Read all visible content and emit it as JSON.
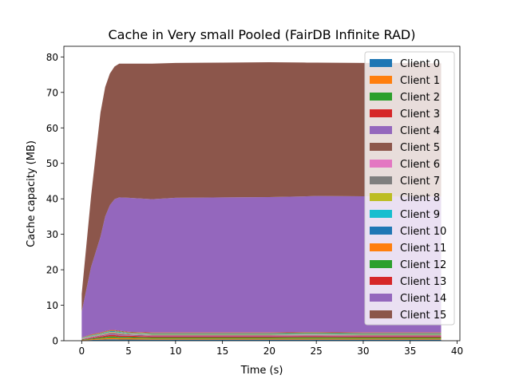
{
  "chart_data": {
    "type": "area",
    "stacked": true,
    "title": "Cache in Very small Pooled (FairDB Infinite RAD)",
    "xlabel": "Time (s)",
    "ylabel": "Cache capacity (MB)",
    "xlim": [
      -1.9,
      40.3
    ],
    "ylim": [
      0,
      83
    ],
    "xticks": [
      0,
      5,
      10,
      15,
      20,
      25,
      30,
      35,
      40
    ],
    "yticks": [
      0,
      10,
      20,
      30,
      40,
      50,
      60,
      70,
      80
    ],
    "legend_position": "top-right",
    "grid": false,
    "x": [
      0,
      1,
      2,
      2.5,
      3,
      3.5,
      4,
      5,
      7.5,
      10,
      15,
      20,
      24,
      25,
      30,
      35,
      38.3
    ],
    "series": [
      {
        "name": "Client 0",
        "color": "#1f77b4",
        "values": [
          0.1,
          0.2,
          0.3,
          0.35,
          0.4,
          0.4,
          0.35,
          0.35,
          0.3,
          0.3,
          0.3,
          0.3,
          0.3,
          0.3,
          0.3,
          0.3,
          0.3
        ]
      },
      {
        "name": "Client 1",
        "color": "#ff7f0e",
        "values": [
          0.1,
          0.2,
          0.3,
          0.35,
          0.4,
          0.4,
          0.35,
          0.35,
          0.3,
          0.3,
          0.3,
          0.3,
          0.3,
          0.3,
          0.3,
          0.3,
          0.3
        ]
      },
      {
        "name": "Client 2",
        "color": "#2ca02c",
        "values": [
          0.1,
          0.2,
          0.3,
          0.35,
          0.4,
          0.4,
          0.35,
          0.35,
          0.3,
          0.3,
          0.3,
          0.3,
          0.35,
          0.35,
          0.3,
          0.3,
          0.3
        ]
      },
      {
        "name": "Client 3",
        "color": "#d62728",
        "values": [
          0.1,
          0.2,
          0.3,
          0.35,
          0.4,
          0.4,
          0.35,
          0.35,
          0.3,
          0.3,
          0.3,
          0.3,
          0.3,
          0.3,
          0.3,
          0.3,
          0.3
        ]
      },
      {
        "name": "Client 4",
        "color": "#9467bd",
        "values": [
          0.05,
          0.1,
          0.15,
          0.15,
          0.2,
          0.2,
          0.2,
          0.15,
          0.15,
          0.15,
          0.15,
          0.15,
          0.15,
          0.15,
          0.15,
          0.15,
          0.15
        ]
      },
      {
        "name": "Client 5",
        "color": "#8c564b",
        "values": [
          0.05,
          0.1,
          0.15,
          0.15,
          0.2,
          0.2,
          0.2,
          0.15,
          0.15,
          0.15,
          0.15,
          0.15,
          0.15,
          0.15,
          0.15,
          0.15,
          0.15
        ]
      },
      {
        "name": "Client 6",
        "color": "#e377c2",
        "values": [
          0.05,
          0.1,
          0.1,
          0.15,
          0.15,
          0.15,
          0.15,
          0.1,
          0.1,
          0.1,
          0.1,
          0.1,
          0.1,
          0.1,
          0.1,
          0.1,
          0.1
        ]
      },
      {
        "name": "Client 7",
        "color": "#7f7f7f",
        "values": [
          0.05,
          0.1,
          0.1,
          0.15,
          0.15,
          0.15,
          0.15,
          0.1,
          0.1,
          0.1,
          0.1,
          0.1,
          0.1,
          0.1,
          0.1,
          0.1,
          0.1
        ]
      },
      {
        "name": "Client 8",
        "color": "#bcbd22",
        "values": [
          0.05,
          0.1,
          0.1,
          0.15,
          0.15,
          0.15,
          0.15,
          0.1,
          0.1,
          0.1,
          0.1,
          0.1,
          0.1,
          0.1,
          0.1,
          0.1,
          0.1
        ]
      },
      {
        "name": "Client 9",
        "color": "#17becf",
        "values": [
          0.05,
          0.1,
          0.1,
          0.15,
          0.15,
          0.15,
          0.15,
          0.1,
          0.1,
          0.1,
          0.1,
          0.1,
          0.1,
          0.1,
          0.1,
          0.1,
          0.1
        ]
      },
      {
        "name": "Client 10",
        "color": "#1f77b4",
        "values": [
          0.05,
          0.1,
          0.1,
          0.1,
          0.1,
          0.1,
          0.1,
          0.1,
          0.1,
          0.1,
          0.1,
          0.1,
          0.1,
          0.1,
          0.1,
          0.1,
          0.1
        ]
      },
      {
        "name": "Client 11",
        "color": "#ff7f0e",
        "values": [
          0.05,
          0.1,
          0.1,
          0.1,
          0.1,
          0.1,
          0.1,
          0.1,
          0.1,
          0.1,
          0.1,
          0.1,
          0.1,
          0.1,
          0.1,
          0.1,
          0.1
        ]
      },
      {
        "name": "Client 12",
        "color": "#2ca02c",
        "values": [
          0.05,
          0.1,
          0.1,
          0.1,
          0.1,
          0.1,
          0.1,
          0.1,
          0.1,
          0.1,
          0.1,
          0.1,
          0.15,
          0.15,
          0.1,
          0.1,
          0.1
        ]
      },
      {
        "name": "Client 13",
        "color": "#d62728",
        "values": [
          0.05,
          0.1,
          0.1,
          0.1,
          0.1,
          0.1,
          0.1,
          0.1,
          0.1,
          0.1,
          0.1,
          0.1,
          0.1,
          0.1,
          0.1,
          0.1,
          0.1
        ]
      },
      {
        "name": "Client 14",
        "color": "#9467bd",
        "values": [
          7.3,
          19,
          27,
          32.3,
          35.2,
          36.9,
          37.6,
          37.8,
          37.6,
          38,
          38.1,
          38.2,
          38.3,
          38.4,
          38.4,
          38.3,
          38.3
        ]
      },
      {
        "name": "Client 15",
        "color": "#8c564b",
        "values": [
          5,
          20,
          35,
          36.5,
          37.1,
          37.4,
          37.7,
          37.8,
          38.2,
          38,
          38,
          38,
          37.7,
          37.6,
          37.6,
          37.7,
          37.6
        ]
      }
    ]
  }
}
